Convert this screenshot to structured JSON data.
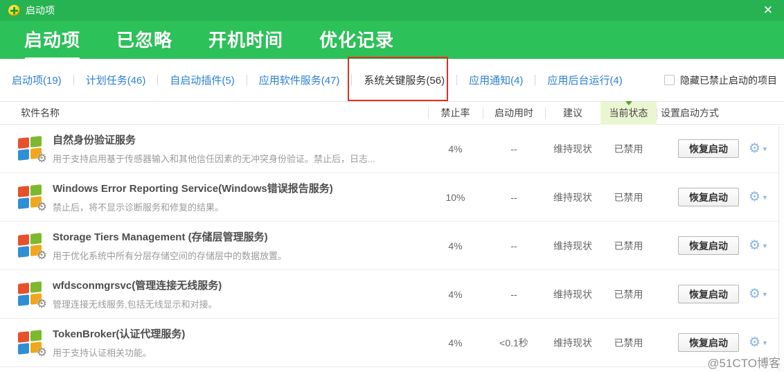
{
  "window": {
    "title": "启动项",
    "close_icon": "✕"
  },
  "nav": {
    "tabs": [
      {
        "label": "启动项",
        "active": true
      },
      {
        "label": "已忽略",
        "active": false
      },
      {
        "label": "开机时间",
        "active": false
      },
      {
        "label": "优化记录",
        "active": false
      }
    ]
  },
  "subnav": {
    "tabs": [
      {
        "label": "启动项(19)",
        "active": false
      },
      {
        "label": "计划任务(46)",
        "active": false
      },
      {
        "label": "自启动插件(5)",
        "active": false
      },
      {
        "label": "应用软件服务(47)",
        "active": false
      },
      {
        "label": "系统关键服务(56)",
        "active": true,
        "annotated": true
      },
      {
        "label": "应用通知(4)",
        "active": false
      },
      {
        "label": "应用后台运行(4)",
        "active": false
      }
    ],
    "hide_disabled_label": "隐藏已禁止启动的项目",
    "hide_disabled_checked": false
  },
  "table": {
    "headers": {
      "name": "软件名称",
      "ban_rate": "禁止率",
      "boot_time": "启动用时",
      "suggestion": "建议",
      "status": "当前状态",
      "set_mode": "设置启动方式"
    },
    "rows": [
      {
        "name": "自然身份验证服务",
        "desc": "用于支持启用基于传感器输入和其他信任因素的无冲突身份验证。禁止后，日志...",
        "ban_rate": "4%",
        "boot_time": "--",
        "suggestion": "维持现状",
        "status": "已禁用",
        "action_label": "恢复启动"
      },
      {
        "name": "Windows Error Reporting Service(Windows错误报告服务)",
        "desc": "禁止后，将不显示诊断服务和修复的结果。",
        "ban_rate": "10%",
        "boot_time": "--",
        "suggestion": "维持现状",
        "status": "已禁用",
        "action_label": "恢复启动"
      },
      {
        "name": "Storage Tiers Management (存储层管理服务)",
        "desc": "用于优化系统中所有分层存储空间的存储层中的数据放置。",
        "ban_rate": "4%",
        "boot_time": "--",
        "suggestion": "维持现状",
        "status": "已禁用",
        "action_label": "恢复启动"
      },
      {
        "name": "wfdsconmgrsvc(管理连接无线服务)",
        "desc": "管理连接无线服务,包括无线显示和对接。",
        "ban_rate": "4%",
        "boot_time": "--",
        "suggestion": "维持现状",
        "status": "已禁用",
        "action_label": "恢复启动"
      },
      {
        "name": "TokenBroker(认证代理服务)",
        "desc": "用于支持认证相关功能。",
        "ban_rate": "4%",
        "boot_time": "<0.1秒",
        "suggestion": "维持现状",
        "status": "已禁用",
        "action_label": "恢复启动"
      }
    ]
  },
  "watermark": "@51CTO博客",
  "colors": {
    "titlebar_green": "#27b351",
    "navbar_green": "#2dc159",
    "link_blue": "#2a7fd4",
    "annotation_red": "#dc2f1f",
    "status_header_bg": "#eaf6d2",
    "gear_blue": "#88b5e6"
  }
}
